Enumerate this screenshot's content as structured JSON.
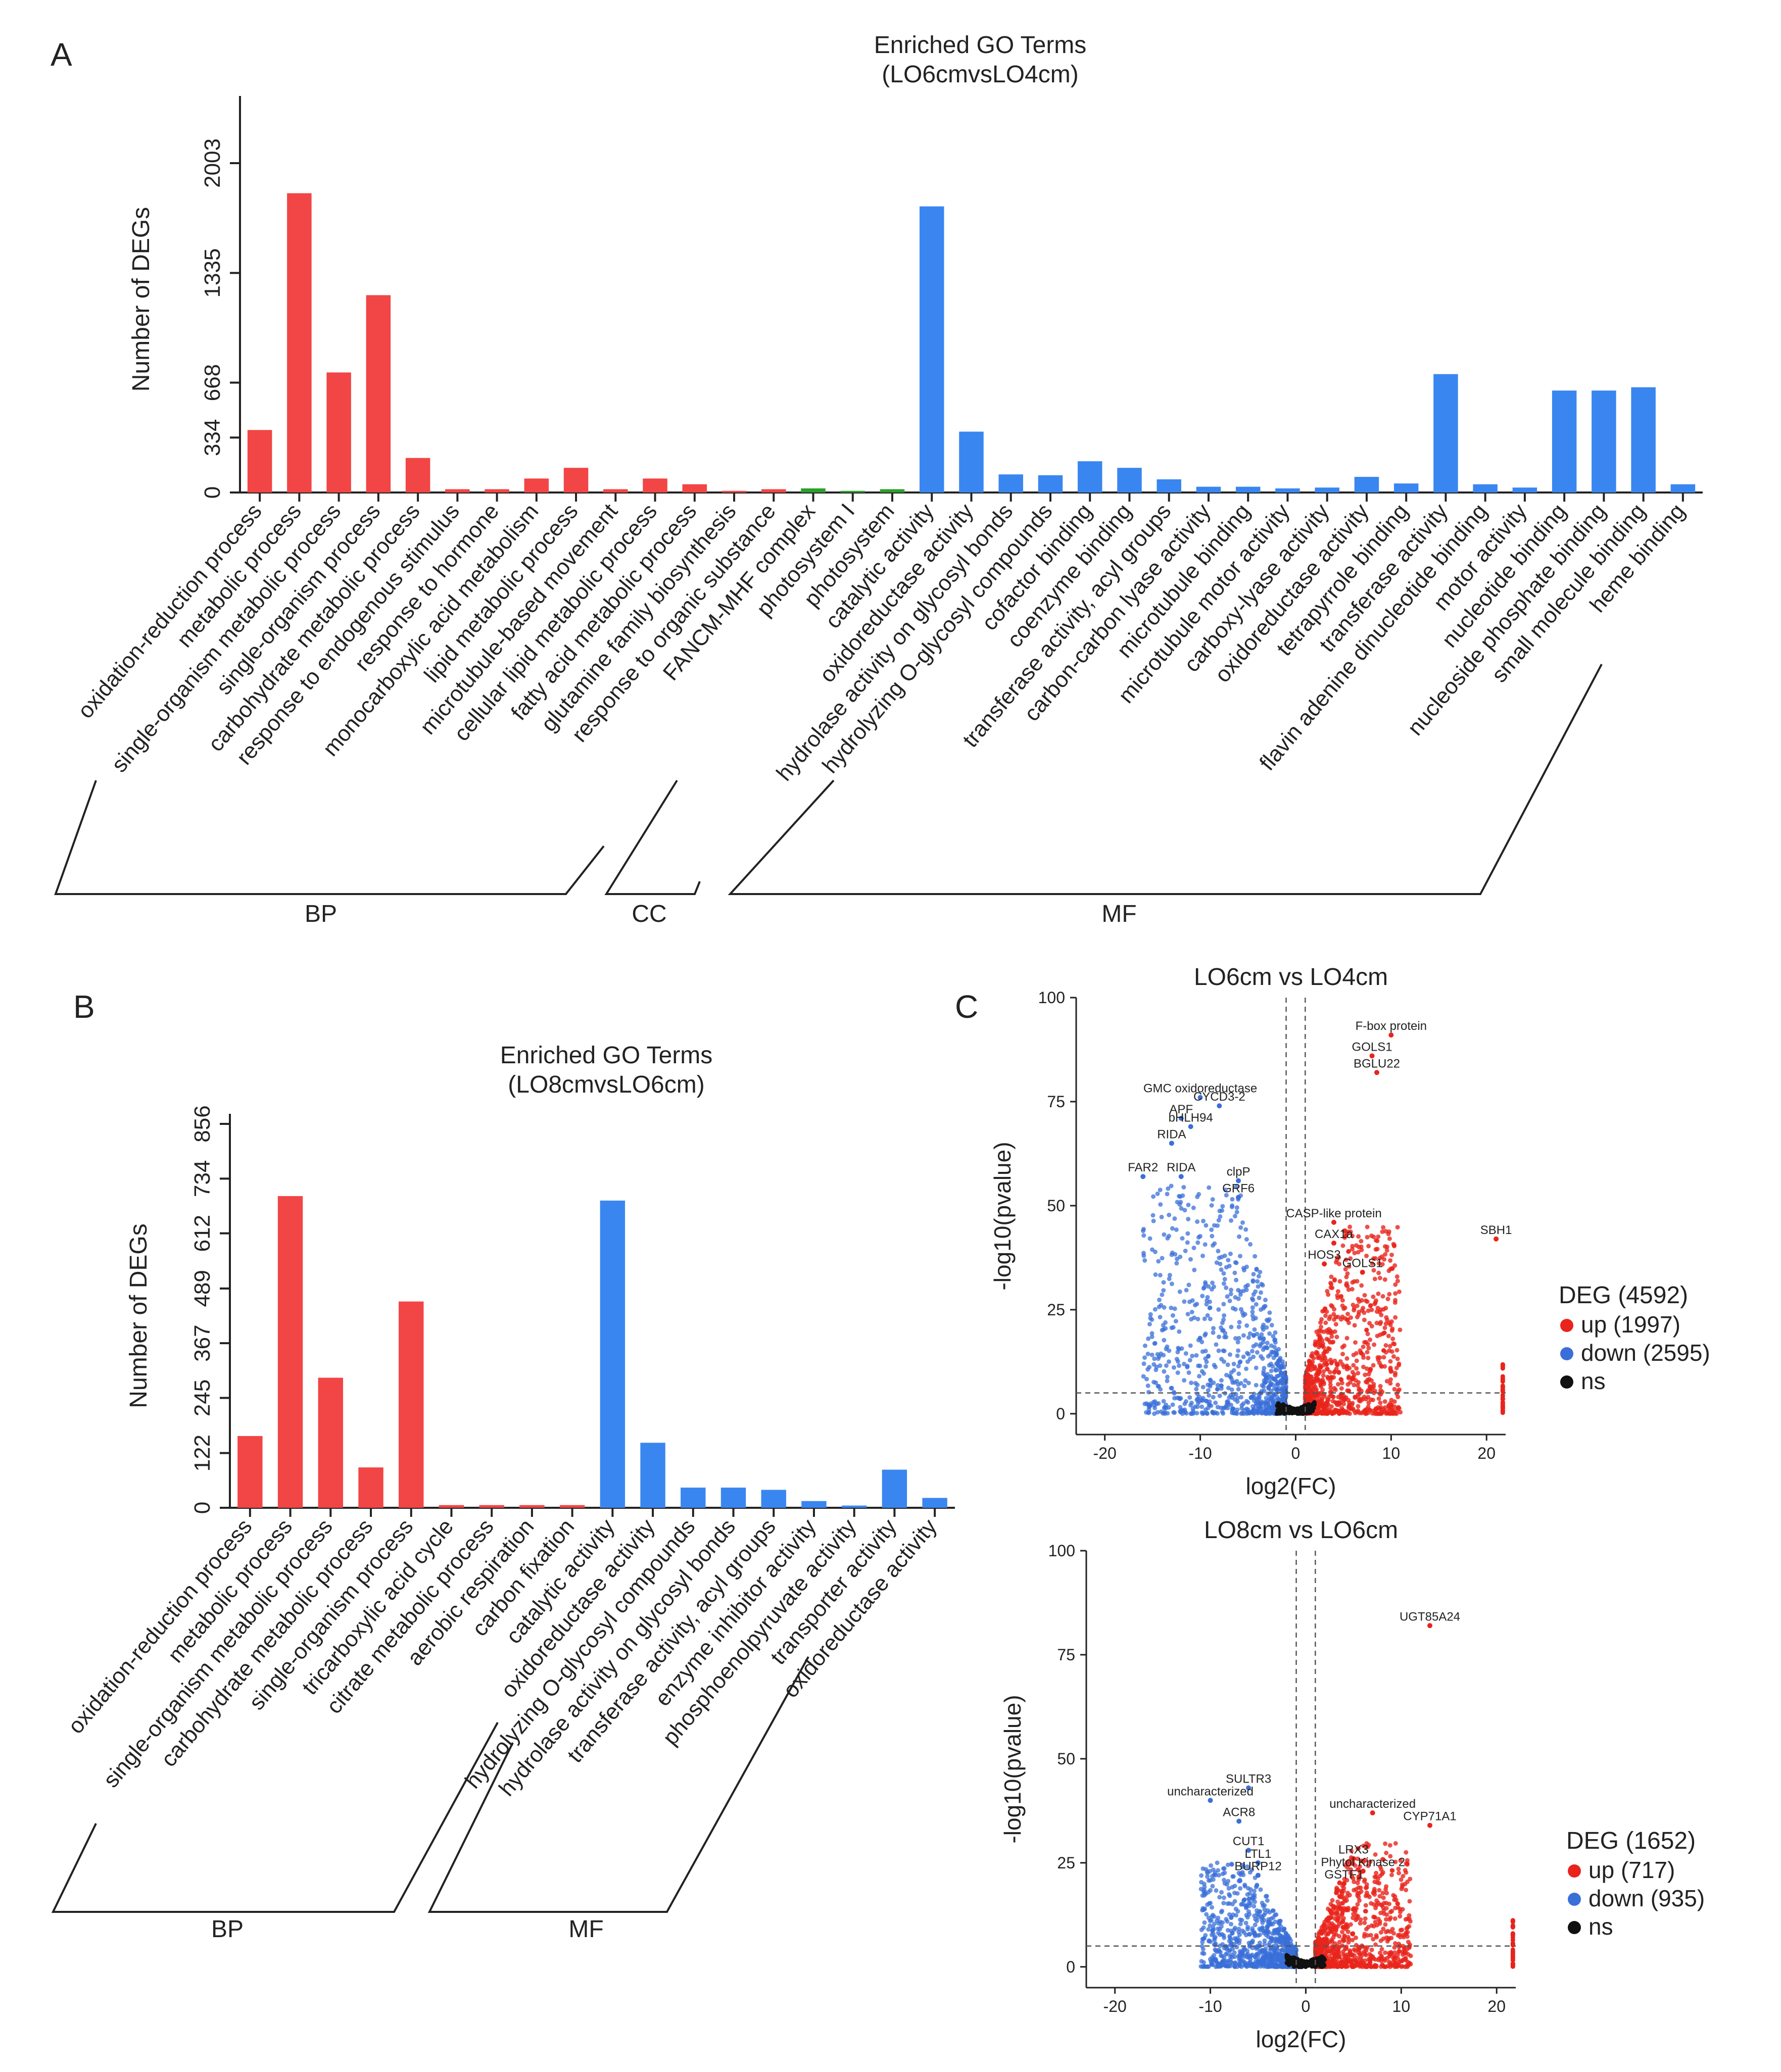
{
  "panel_labels": {
    "a": "A",
    "b": "B",
    "c": "C"
  },
  "colors": {
    "bp": "#f24545",
    "cc": "#2ca02c",
    "mf": "#3a86f0",
    "up": "#e8241c",
    "down": "#3a6fd8",
    "ns": "#111111"
  },
  "chart_data": [
    {
      "id": "A",
      "type": "bar",
      "title": "Enriched GO Terms",
      "subtitle": "(LO6cmvsLO4cm)",
      "xlabel": "",
      "ylabel": "Number of DEGs",
      "yticks": [
        0,
        334,
        668,
        1335,
        2003
      ],
      "ylim": [
        0,
        2350
      ],
      "categories": [
        "oxidation-reduction process",
        "metabolic process",
        "single-organism metabolic process",
        "single-organism process",
        "carbohydrate metabolic process",
        "response to endogenous stimulus",
        "response to hormone",
        "monocarboxylic acid metabolism",
        "lipid metabolic process",
        "microtubule-based movement",
        "cellular lipid metabolic process",
        "fatty acid metabolic process",
        "glutamine family biosynthesis",
        "response to organic substance",
        "FANCM-MHF complex",
        "photosystem I",
        "photosystem",
        "catalytic activity",
        "oxidoreductase activity",
        "hydrolase activity on glycosyl bonds",
        "hydrolyzing O-glycosyl compounds",
        "cofactor binding",
        "coenzyme binding",
        "transferase activity, acyl groups",
        "carbon-carbon lyase activity",
        "microtubule binding",
        "microtubule motor activity",
        "carboxy-lyase activity",
        "oxidoreductase activity",
        "tetrapyrrole binding",
        "transferase activity",
        "flavin adenine dinucleotide binding",
        "motor activity",
        "nucleotide binding",
        "nucleoside phosphate binding",
        "small molecule binding",
        "heme binding"
      ],
      "values": [
        380,
        1820,
        730,
        1200,
        210,
        20,
        20,
        85,
        150,
        20,
        85,
        50,
        10,
        20,
        25,
        10,
        20,
        1740,
        370,
        110,
        105,
        190,
        150,
        80,
        35,
        35,
        25,
        30,
        95,
        55,
        720,
        50,
        30,
        620,
        620,
        640,
        50
      ],
      "groups": [
        "BP",
        "BP",
        "BP",
        "BP",
        "BP",
        "BP",
        "BP",
        "BP",
        "BP",
        "BP",
        "BP",
        "BP",
        "BP",
        "BP",
        "CC",
        "CC",
        "CC",
        "MF",
        "MF",
        "MF",
        "MF",
        "MF",
        "MF",
        "MF",
        "MF",
        "MF",
        "MF",
        "MF",
        "MF",
        "MF",
        "MF",
        "MF",
        "MF",
        "MF",
        "MF",
        "MF",
        "MF"
      ],
      "group_labels": [
        "BP",
        "CC",
        "MF"
      ]
    },
    {
      "id": "B",
      "type": "bar",
      "title": "Enriched GO Terms",
      "subtitle": "(LO8cmvsLO6cm)",
      "xlabel": "",
      "ylabel": "Number of DEGs",
      "yticks": [
        0,
        122,
        245,
        367,
        489,
        612,
        734,
        856
      ],
      "ylim": [
        0,
        856
      ],
      "categories": [
        "oxidation-reduction process",
        "metabolic process",
        "single-organism metabolic process",
        "carbohydrate metabolic process",
        "single-organism process",
        "tricarboxylic acid cycle",
        "citrate metabolic process",
        "aerobic respiration",
        "carbon fixation",
        "catalytic activity",
        "oxidoreductase activity",
        "hydrolyzing O-glycosyl compounds",
        "hydrolase activity on glycosyl bonds",
        "transferase activity, acyl groups",
        "enzyme inhibitor activity",
        "phosphoenolpyruvate activity",
        "transporter activity",
        "oxidoreductase activity"
      ],
      "values": [
        160,
        695,
        290,
        90,
        460,
        6,
        6,
        6,
        6,
        685,
        145,
        45,
        45,
        40,
        15,
        5,
        85,
        22
      ],
      "groups": [
        "BP",
        "BP",
        "BP",
        "BP",
        "BP",
        "BP",
        "BP",
        "BP",
        "BP",
        "MF",
        "MF",
        "MF",
        "MF",
        "MF",
        "MF",
        "MF",
        "MF",
        "MF"
      ],
      "group_labels": [
        "BP",
        "MF"
      ]
    },
    {
      "id": "C1",
      "type": "scatter",
      "title": "LO6cm vs LO4cm",
      "xlabel": "log2(FC)",
      "ylabel": "-log10(pvalue)",
      "xlim": [
        -23,
        22
      ],
      "ylim": [
        -5,
        100
      ],
      "xticks": [
        -20,
        -10,
        0,
        10,
        20
      ],
      "yticks": [
        0,
        25,
        50,
        75,
        100
      ],
      "vlines": [
        -1,
        1
      ],
      "hline": 5,
      "legend_title": "DEG (4592)",
      "legend": [
        {
          "label": "up (1997)",
          "color": "up"
        },
        {
          "label": "down (2595)",
          "color": "down"
        },
        {
          "label": "ns",
          "color": "ns"
        }
      ],
      "down_density": {
        "x_spread": 15,
        "y_peak": 55
      },
      "up_density": {
        "x_spread": 10,
        "y_peak": 45
      },
      "annotations": [
        {
          "label": "F-box protein",
          "x": 10,
          "y": 91
        },
        {
          "label": "GOLS1",
          "x": 8,
          "y": 86
        },
        {
          "label": "BGLU22",
          "x": 8.5,
          "y": 82
        },
        {
          "label": "GMC oxidoreductase",
          "x": -10,
          "y": 76
        },
        {
          "label": "CYCD3-2",
          "x": -8,
          "y": 74
        },
        {
          "label": "APF",
          "x": -12,
          "y": 71
        },
        {
          "label": "bHLH94",
          "x": -11,
          "y": 69
        },
        {
          "label": "RIDA",
          "x": -13,
          "y": 65
        },
        {
          "label": "FAR2",
          "x": -16,
          "y": 57
        },
        {
          "label": "RIDA",
          "x": -12,
          "y": 57
        },
        {
          "label": "clpP",
          "x": -6,
          "y": 56
        },
        {
          "label": "GRF6",
          "x": -6,
          "y": 52
        },
        {
          "label": "CASP-like protein",
          "x": 4,
          "y": 46
        },
        {
          "label": "CAX1a",
          "x": 4,
          "y": 41
        },
        {
          "label": "HOS3",
          "x": 3,
          "y": 36
        },
        {
          "label": "GOLS1",
          "x": 7,
          "y": 34
        },
        {
          "label": "SBH1",
          "x": 21,
          "y": 42
        }
      ]
    },
    {
      "id": "C2",
      "type": "scatter",
      "title": "LO8cm vs LO6cm",
      "xlabel": "log2(FC)",
      "ylabel": "-log10(pvalue)",
      "xlim": [
        -23,
        22
      ],
      "ylim": [
        -5,
        100
      ],
      "xticks": [
        -20,
        -10,
        0,
        10,
        20
      ],
      "yticks": [
        0,
        25,
        50,
        75,
        100
      ],
      "vlines": [
        -1,
        1
      ],
      "hline": 5,
      "legend_title": "DEG (1652)",
      "legend": [
        {
          "label": "up (717)",
          "color": "up"
        },
        {
          "label": "down (935)",
          "color": "down"
        },
        {
          "label": "ns",
          "color": "ns"
        }
      ],
      "down_density": {
        "x_spread": 10,
        "y_peak": 25
      },
      "up_density": {
        "x_spread": 10,
        "y_peak": 30
      },
      "annotations": [
        {
          "label": "UGT85A24",
          "x": 13,
          "y": 82
        },
        {
          "label": "SULTR3",
          "x": -6,
          "y": 43
        },
        {
          "label": "uncharacterized",
          "x": -10,
          "y": 40
        },
        {
          "label": "ACR8",
          "x": -7,
          "y": 35
        },
        {
          "label": "uncharacterized",
          "x": 7,
          "y": 37
        },
        {
          "label": "CYP71A1",
          "x": 13,
          "y": 34
        },
        {
          "label": "CUT1",
          "x": -6,
          "y": 28
        },
        {
          "label": "LTL1",
          "x": -5,
          "y": 25
        },
        {
          "label": "BURP12",
          "x": -5,
          "y": 22
        },
        {
          "label": "LRX3",
          "x": 5,
          "y": 26
        },
        {
          "label": "Phytol Kinase 2",
          "x": 6,
          "y": 23
        },
        {
          "label": "GSTF1",
          "x": 4,
          "y": 20
        }
      ]
    }
  ]
}
